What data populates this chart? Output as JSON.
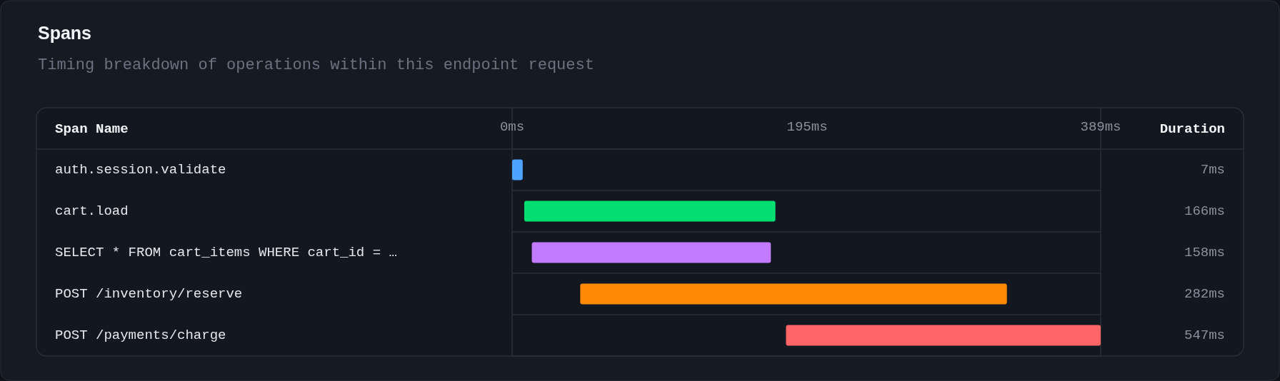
{
  "chart_data": {
    "type": "bar",
    "orientation": "horizontal",
    "title": "Spans",
    "subtitle": "Timing breakdown of operations within this endpoint request",
    "ylabel": "Span Name",
    "annotations": [
      "Duration"
    ],
    "categories": [
      "auth.session.validate",
      "cart.load",
      "SELECT * FROM cart_items WHERE cart_id = …",
      "POST /inventory/reserve",
      "POST /payments/charge"
    ],
    "base": [
      0,
      8,
      13,
      45,
      181
    ],
    "values": [
      7,
      166,
      158,
      282,
      547
    ],
    "value_labels": [
      "7ms",
      "166ms",
      "158ms",
      "282ms",
      "547ms"
    ],
    "colors": [
      "#4da3ff",
      "#05df72",
      "#c27aff",
      "#ff8904",
      "#ff6467"
    ],
    "xlim": [
      0,
      389
    ],
    "xticks": [
      {
        "value": 0,
        "label": "0ms"
      },
      {
        "value": 195,
        "label": "195ms"
      },
      {
        "value": 389,
        "label": "389ms"
      }
    ],
    "grid": "y"
  }
}
